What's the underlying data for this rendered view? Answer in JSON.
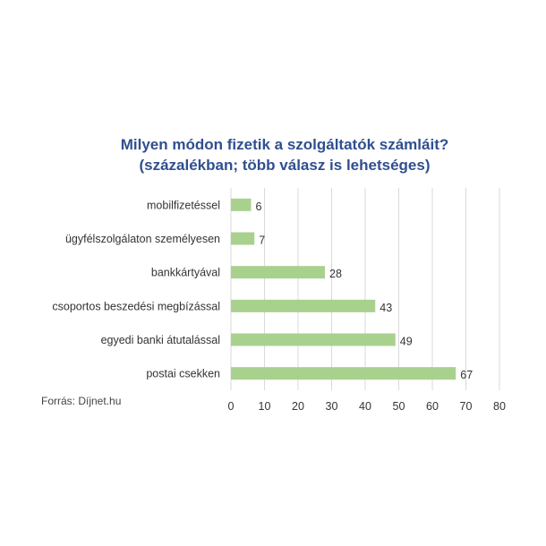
{
  "chart_data": {
    "type": "bar",
    "orientation": "horizontal",
    "title": "Milyen módon fizetik a szolgáltatók számláit?",
    "subtitle": "(százalékban; több válasz is lehetséges)",
    "categories": [
      "mobilfizetéssel",
      "ügyfélszolgálaton személyesen",
      "bankkártyával",
      "csoportos beszedési megbízással",
      "egyedi banki átutalással",
      "postai csekken"
    ],
    "values": [
      6,
      7,
      28,
      43,
      49,
      67
    ],
    "value_labels": [
      "6",
      "7",
      "28",
      "43",
      "49",
      "67"
    ],
    "xlim": [
      0,
      80
    ],
    "xticks": [
      0,
      10,
      20,
      30,
      40,
      50,
      60,
      70,
      80
    ],
    "xtick_labels": [
      "0",
      "10",
      "20",
      "30",
      "40",
      "50",
      "60",
      "70",
      "80"
    ],
    "grid": "vertical",
    "legend": "none",
    "bar_color": "#a9d18e",
    "title_color": "#2f4f8f",
    "source": "Forrás: Díjnet.hu"
  }
}
